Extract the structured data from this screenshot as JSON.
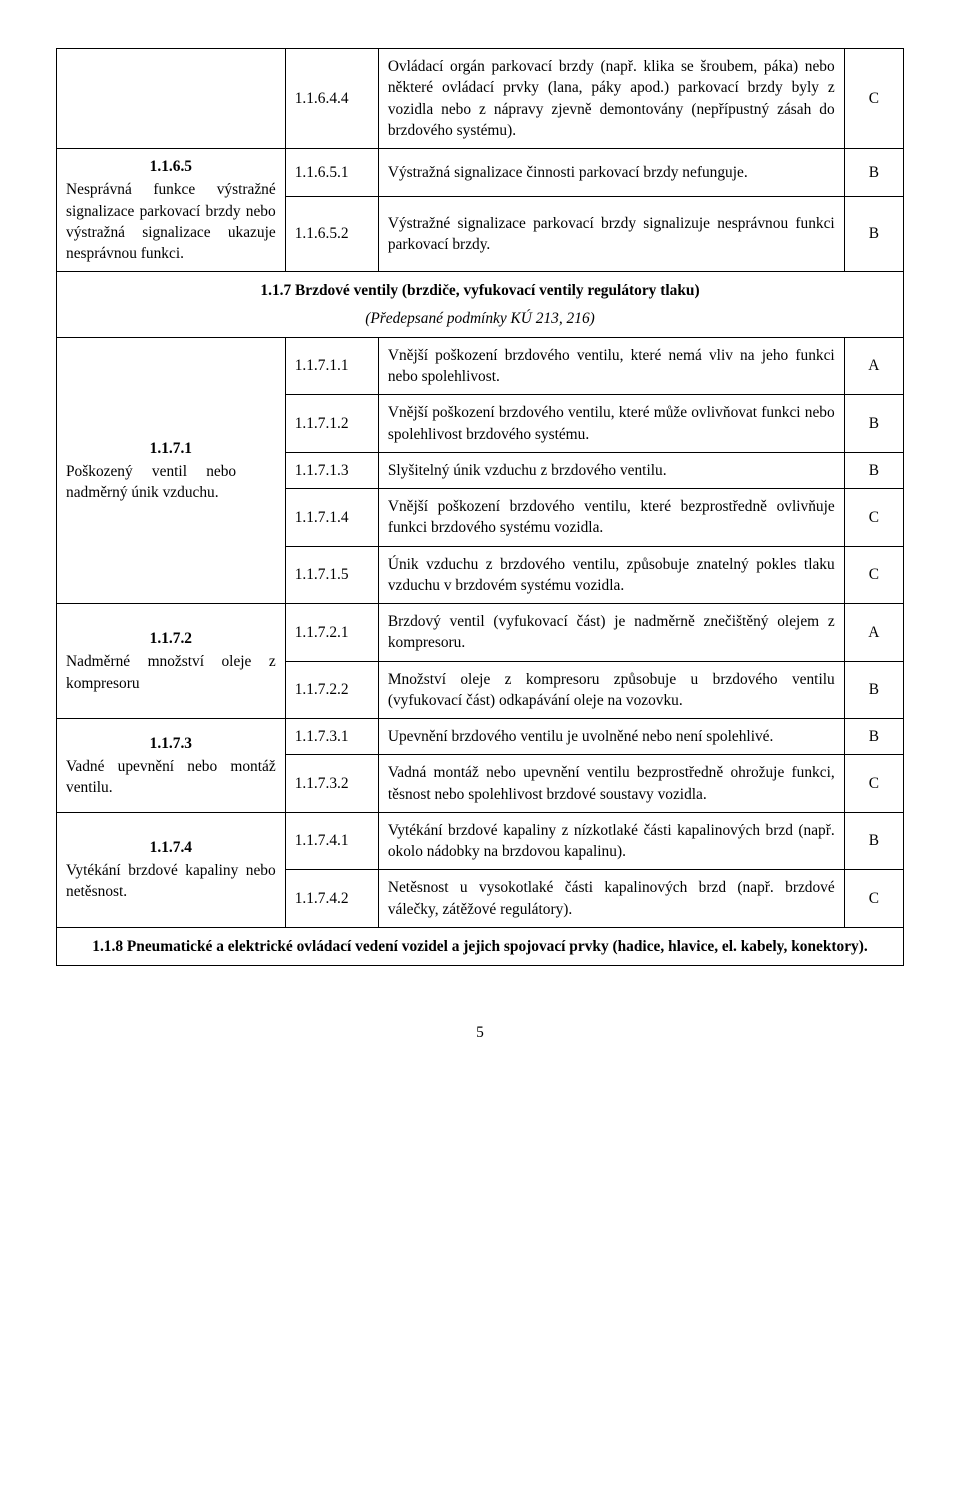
{
  "table_rows": {
    "r1": {
      "left_num": "",
      "left_txt": "",
      "code": "1.1.6.4.4",
      "desc": "Ovládací orgán parkovací brzdy (např. klika se šroubem, páka) nebo některé ovládací prvky (lana, páky apod.) parkovací brzdy byly z vozidla nebo z nápravy zjevně demontovány (nepřípustný zásah do brzdového systému).",
      "grade": "C"
    },
    "r2": {
      "left_num": "1.1.6.5",
      "left_txt": "Nesprávná funkce výstražné signalizace parkovací brzdy nebo výstražná signalizace ukazuje nesprávnou funkci.",
      "code": "1.1.6.5.1",
      "desc": "Výstražná signalizace činnosti parkovací brzdy nefunguje.",
      "grade": "B"
    },
    "r3": {
      "code": "1.1.6.5.2",
      "desc": "Výstražné signalizace parkovací brzdy signalizuje nesprávnou funkci parkovací brzdy.",
      "grade": "B"
    },
    "section_117": {
      "title": "1.1.7 Brzdové ventily (brzdiče, vyfukovací ventily regulátory tlaku)",
      "sub": "(Předepsané podmínky KÚ 213, 216)"
    },
    "r4": {
      "left_num": "1.1.7.1",
      "left_txt": "Poškozený ventil nebo nadměrný únik vzduchu.",
      "code": "1.1.7.1.1",
      "desc": "Vnější poškození brzdového ventilu, které nemá vliv na jeho funkci nebo spolehlivost.",
      "grade": "A"
    },
    "r5": {
      "code": "1.1.7.1.2",
      "desc": "Vnější poškození brzdového ventilu, které může ovlivňovat funkci nebo spolehlivost brzdového systému.",
      "grade": "B"
    },
    "r6": {
      "code": "1.1.7.1.3",
      "desc": "Slyšitelný únik vzduchu z brzdového ventilu.",
      "grade": "B"
    },
    "r7": {
      "code": "1.1.7.1.4",
      "desc": "Vnější poškození brzdového ventilu, které bezprostředně ovlivňuje funkci brzdového systému vozidla.",
      "grade": "C"
    },
    "r8": {
      "code": "1.1.7.1.5",
      "desc": "Únik vzduchu z brzdového ventilu, způsobuje znatelný pokles tlaku vzduchu v brzdovém systému vozidla.",
      "grade": "C"
    },
    "r9": {
      "left_num": "1.1.7.2",
      "left_txt": "Nadměrné množství oleje z kompresoru",
      "code": "1.1.7.2.1",
      "desc": "Brzdový ventil (vyfukovací část) je nadměrně znečištěný olejem z kompresoru.",
      "grade": "A"
    },
    "r10": {
      "code": "1.1.7.2.2",
      "desc": "Množství oleje z kompresoru způsobuje u brzdového ventilu (vyfukovací část) odkapávání oleje na vozovku.",
      "grade": "B"
    },
    "r11": {
      "left_num": "1.1.7.3",
      "left_txt": "Vadné upevnění nebo montáž ventilu.",
      "code": "1.1.7.3.1",
      "desc": "Upevnění brzdového ventilu je uvolněné nebo není spolehlivé.",
      "grade": "B"
    },
    "r12": {
      "code": "1.1.7.3.2",
      "desc": "Vadná montáž nebo upevnění ventilu bezprostředně ohrožuje funkci, těsnost nebo spolehlivost brzdové soustavy vozidla.",
      "grade": "C"
    },
    "r13": {
      "left_num": "1.1.7.4",
      "left_txt": "Vytékání brzdové kapaliny nebo netěsnost.",
      "code": "1.1.7.4.1",
      "desc": "Vytékání brzdové kapaliny z nízkotlaké části kapalinových brzd (např. okolo nádobky na brzdovou kapalinu).",
      "grade": "B"
    },
    "r14": {
      "code": "1.1.7.4.2",
      "desc": "Netěsnost u vysokotlaké části kapalinových brzd (např. brzdové válečky, zátěžové regulátory).",
      "grade": "C"
    },
    "section_118": {
      "title": "1.1.8 Pneumatické a elektrické ovládací vedení vozidel a jejich spojovací prvky (hadice, hlavice, el. kabely, konektory)."
    }
  },
  "page_number": "5"
}
